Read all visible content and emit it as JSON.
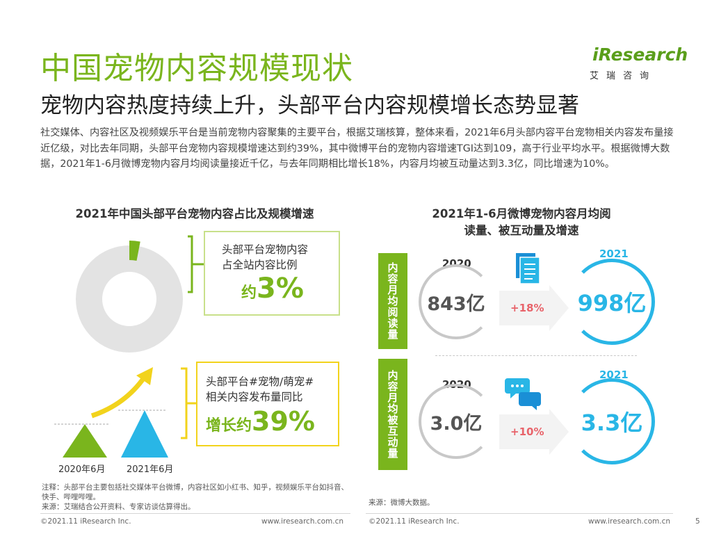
{
  "title": "中国宠物内容规模现状",
  "subtitle": "宠物内容热度持续上升，头部平台内容规模增长态势显著",
  "intro": "社交媒体、内容社区及视频娱乐平台是当前宠物内容聚集的主要平台，根据艾瑞核算，整体来看，2021年6月头部内容平台宠物相关内容发布量接近亿级，对比去年同期，头部平台宠物内容规模增速达到约39%，其中微博平台的宠物内容增速TGI达到109，高于行业平均水平。根据微博大数据，2021年1-6月微博宠物内容月均阅读量接近千亿，与去年同期相比增长18%，内容月均被互动量达到3.3亿，同比增速为10%。",
  "logo": {
    "word": "iResearch",
    "cn": "艾瑞咨询"
  },
  "left": {
    "heading": "2021年中国头部平台宠物内容占比及规模增速",
    "share_box": {
      "line1": "头部平台宠物内容",
      "line2": "占全站内容比例",
      "prefix": "约",
      "value": "3%"
    },
    "growth_box": {
      "line1": "头部平台#宠物/萌宠#",
      "line2": "相关内容发布量同比",
      "prefix": "增长约",
      "value": "39%"
    },
    "bars": {
      "label_2020": "2020年6月",
      "label_2021": "2021年6月"
    },
    "donut": {
      "share_percent": 3,
      "color_main": "#e3e3e3",
      "color_highlight": "#7ab51d"
    },
    "note": "注释：头部平台主要包括社交媒体平台微博，内容社区如小红书、知乎，视频娱乐平台如抖音、快手、哔哩哔哩。\n来源：艾瑞结合公开资料、专家访谈估算得出。"
  },
  "right": {
    "heading_line1": "2021年1-6月微博宠物内容月均阅",
    "heading_line2": "读量、被互动量及增速",
    "row1": {
      "label": "内容月均阅读量",
      "year_prev": "2020",
      "value_prev": "843亿",
      "growth": "+18%",
      "year_curr": "2021",
      "value_curr": "998亿",
      "icon": "document-icon"
    },
    "row2": {
      "label": "内容月均被互动量",
      "year_prev": "2020",
      "value_prev": "3.0亿",
      "growth": "+10%",
      "year_curr": "2021",
      "value_curr": "3.3亿",
      "icon": "chat-bubbles-icon"
    },
    "source": "来源：微博大数据。"
  },
  "footer": {
    "copyright_left": "©2021.11 iResearch Inc.",
    "url_left": "www.iresearch.com.cn",
    "copyright_right": "©2021.11 iResearch Inc.",
    "url_right": "www.iresearch.com.cn",
    "page": "5"
  },
  "colors": {
    "green": "#7ab51d",
    "blue": "#29b6e6",
    "yellow": "#f2d31c",
    "red": "#e8636a"
  }
}
